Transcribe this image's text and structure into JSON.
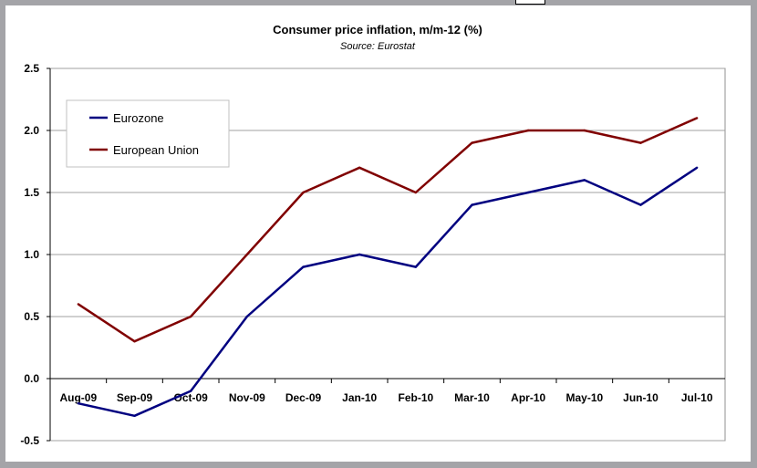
{
  "chart_data": {
    "type": "line",
    "title": "Consumer price inflation, m/m-12 (%)",
    "subtitle": "Source: Eurostat",
    "xlabel": "",
    "ylabel": "",
    "categories": [
      "Aug-09",
      "Sep-09",
      "Oct-09",
      "Nov-09",
      "Dec-09",
      "Jan-10",
      "Feb-10",
      "Mar-10",
      "Apr-10",
      "May-10",
      "Jun-10",
      "Jul-10"
    ],
    "ylim": [
      -0.5,
      2.5
    ],
    "yticks": [
      "2.5",
      "2.0",
      "1.5",
      "1.0",
      "0.5",
      "0.0",
      "-0.5"
    ],
    "grid": true,
    "legend_position": "top-left",
    "series": [
      {
        "name": "Eurozone",
        "color": "#000080",
        "values": [
          -0.2,
          -0.3,
          -0.1,
          0.5,
          0.9,
          1.0,
          0.9,
          1.4,
          1.5,
          1.6,
          1.4,
          1.7
        ]
      },
      {
        "name": "European Union",
        "color": "#800000",
        "values": [
          0.6,
          0.3,
          0.5,
          1.0,
          1.5,
          1.7,
          1.5,
          1.9,
          2.0,
          2.0,
          1.9,
          2.1
        ]
      }
    ]
  }
}
